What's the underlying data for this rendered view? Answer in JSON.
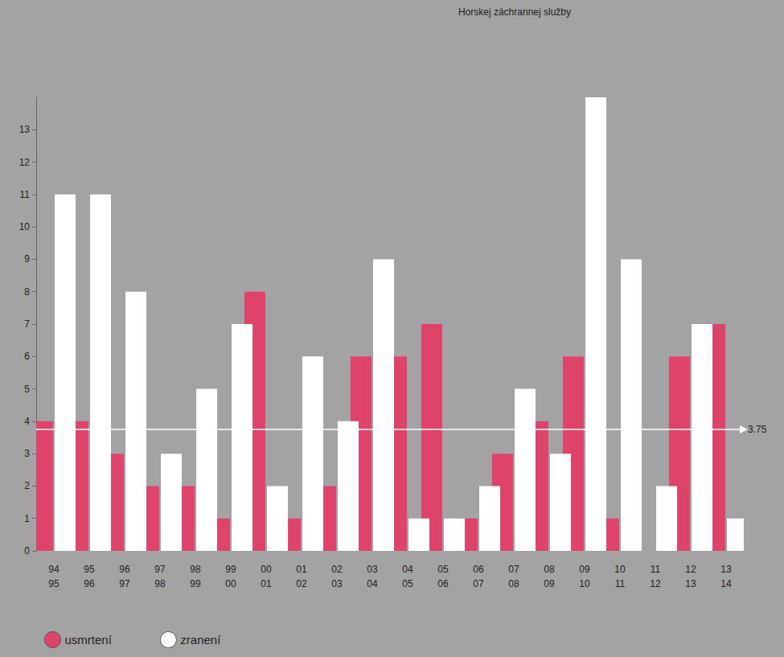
{
  "chart_data": {
    "type": "bar",
    "source": "Horskej záchrannej služby",
    "categories": [
      "94\n95",
      "95\n96",
      "96\n97",
      "97\n98",
      "98\n99",
      "99\n00",
      "00\n01",
      "01\n02",
      "02\n03",
      "03\n04",
      "04\n05",
      "05\n06",
      "06\n07",
      "07\n08",
      "08\n09",
      "09\n10",
      "10\n11",
      "11\n12",
      "12\n13",
      "13\n14"
    ],
    "series": [
      {
        "name": "usmrtení",
        "color": "#e0436a",
        "values": [
          4,
          4,
          3,
          2,
          2,
          1,
          8,
          1,
          2,
          6,
          6,
          7,
          1,
          3,
          4,
          6,
          1,
          0,
          6,
          7
        ]
      },
      {
        "name": "zranení",
        "color": "#ffffff",
        "values": [
          11,
          11,
          8,
          3,
          5,
          7,
          2,
          6,
          4,
          9,
          1,
          1,
          2,
          5,
          3,
          14,
          9,
          2,
          7,
          1
        ]
      }
    ],
    "reference_line": 3.75,
    "ylim": [
      0,
      14
    ],
    "yticks": [
      0,
      1,
      2,
      3,
      4,
      5,
      6,
      7,
      8,
      9,
      10,
      11,
      12,
      13
    ],
    "grid": false,
    "legend": "bottom-left"
  }
}
